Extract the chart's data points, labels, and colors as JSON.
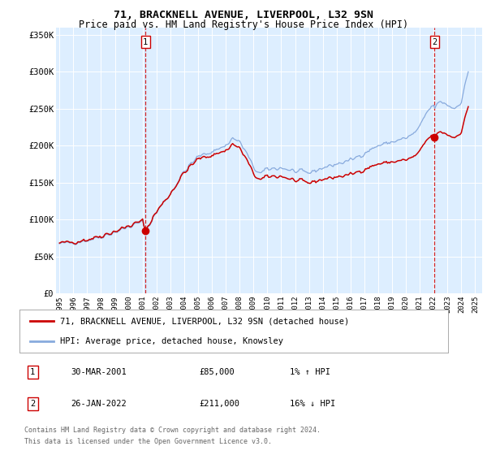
{
  "title1": "71, BRACKNELL AVENUE, LIVERPOOL, L32 9SN",
  "title2": "Price paid vs. HM Land Registry's House Price Index (HPI)",
  "ylabel_ticks": [
    "£0",
    "£50K",
    "£100K",
    "£150K",
    "£200K",
    "£250K",
    "£300K",
    "£350K"
  ],
  "ytick_values": [
    0,
    50000,
    100000,
    150000,
    200000,
    250000,
    300000,
    350000
  ],
  "ylim": [
    0,
    360000
  ],
  "xlim_start": 1994.75,
  "xlim_end": 2025.5,
  "bg_color": "#ddeeff",
  "line1_color": "#cc0000",
  "line2_color": "#88aadd",
  "vline_color": "#cc0000",
  "legend_label1": "71, BRACKNELL AVENUE, LIVERPOOL, L32 9SN (detached house)",
  "legend_label2": "HPI: Average price, detached house, Knowsley",
  "transaction1_date": "30-MAR-2001",
  "transaction1_price": "£85,000",
  "transaction1_hpi": "1% ↑ HPI",
  "transaction1_year": 2001.21,
  "transaction1_value": 85000,
  "transaction2_date": "26-JAN-2022",
  "transaction2_price": "£211,000",
  "transaction2_hpi": "16% ↓ HPI",
  "transaction2_year": 2022.07,
  "transaction2_value": 211000,
  "footnote1": "Contains HM Land Registry data © Crown copyright and database right 2024.",
  "footnote2": "This data is licensed under the Open Government Licence v3.0."
}
